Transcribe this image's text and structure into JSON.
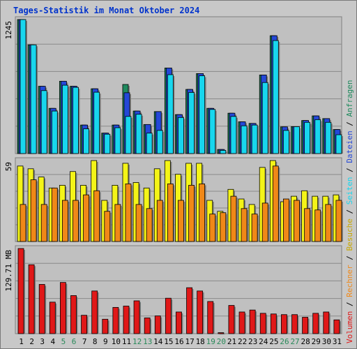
{
  "title": "Tages-Statistik im Monat Oktober 2024",
  "colors": {
    "anfragen": "#1f8a5e",
    "dateien": "#2448d8",
    "seiten": "#18d6ee",
    "besuche": "#f4f418",
    "rechner": "#f08818",
    "volumen": "#e01818",
    "weekend_label": "#2a8a5a",
    "weekday_label": "#000000"
  },
  "chart_data": [
    {
      "type": "bar",
      "panel": "top",
      "ylabel_value": "1245",
      "ylim": [
        0,
        1245
      ],
      "categories": [
        "1",
        "2",
        "3",
        "4",
        "5",
        "6",
        "7",
        "8",
        "9",
        "10",
        "11",
        "12",
        "13",
        "14",
        "15",
        "16",
        "17",
        "18",
        "19",
        "20",
        "21",
        "22",
        "23",
        "24",
        "25",
        "26",
        "27",
        "28",
        "29",
        "30",
        "31"
      ],
      "weekend_days": [
        "5",
        "6",
        "12",
        "13",
        "19",
        "20",
        "26",
        "27"
      ],
      "series": [
        {
          "name": "Anfragen",
          "values": [
            1245,
            1010,
            625,
            420,
            672,
            625,
            265,
            602,
            190,
            265,
            642,
            395,
            270,
            390,
            795,
            362,
            596,
            743,
            420,
            38,
            375,
            295,
            280,
            730,
            1095,
            248,
            250,
            307,
            350,
            325,
            223
          ]
        },
        {
          "name": "Dateien",
          "values": [
            1245,
            1010,
            625,
            420,
            672,
            625,
            265,
            602,
            190,
            265,
            565,
            395,
            270,
            390,
            795,
            362,
            596,
            743,
            420,
            38,
            375,
            295,
            280,
            730,
            1095,
            248,
            250,
            307,
            350,
            325,
            223
          ]
        },
        {
          "name": "Seiten",
          "values": [
            1245,
            1010,
            585,
            395,
            635,
            615,
            230,
            570,
            180,
            240,
            345,
            365,
            190,
            215,
            733,
            335,
            568,
            723,
            410,
            30,
            345,
            258,
            265,
            660,
            1050,
            215,
            250,
            290,
            315,
            290,
            175
          ]
        }
      ]
    },
    {
      "type": "bar",
      "panel": "middle",
      "ylabel_value": "59",
      "ylim": [
        0,
        59
      ],
      "categories": [
        "1",
        "2",
        "3",
        "4",
        "5",
        "6",
        "7",
        "8",
        "9",
        "10",
        "11",
        "12",
        "13",
        "14",
        "15",
        "16",
        "17",
        "18",
        "19",
        "20",
        "21",
        "22",
        "23",
        "24",
        "25",
        "26",
        "27",
        "28",
        "29",
        "30",
        "31"
      ],
      "series": [
        {
          "name": "Besuche",
          "values": [
            55,
            53,
            47,
            39,
            41,
            51,
            41,
            59,
            30,
            41,
            57,
            43,
            39,
            53,
            59,
            49,
            57,
            57,
            30,
            22,
            38,
            31,
            27,
            54,
            59,
            29,
            33,
            37,
            33,
            33,
            34
          ]
        },
        {
          "name": "Rechner",
          "values": [
            27,
            45,
            27,
            39,
            30,
            30,
            34,
            37,
            22,
            27,
            42,
            27,
            24,
            30,
            42,
            30,
            41,
            42,
            20,
            21,
            33,
            24,
            20,
            28,
            55,
            31,
            30,
            24,
            23,
            27,
            30
          ]
        }
      ]
    },
    {
      "type": "bar",
      "panel": "bottom",
      "ylabel_value": "129.71 MB",
      "ylim": [
        0,
        129.71
      ],
      "categories": [
        "1",
        "2",
        "3",
        "4",
        "5",
        "6",
        "7",
        "8",
        "9",
        "10",
        "11",
        "12",
        "13",
        "14",
        "15",
        "16",
        "17",
        "18",
        "19",
        "20",
        "21",
        "22",
        "23",
        "24",
        "25",
        "26",
        "27",
        "28",
        "29",
        "30",
        "31"
      ],
      "series": [
        {
          "name": "Volumen",
          "values": [
            129.71,
            105,
            75,
            48,
            78,
            58,
            28,
            65,
            22,
            40,
            42,
            50,
            24,
            27,
            54,
            33,
            70,
            65,
            49,
            1.5,
            43,
            33,
            36,
            31,
            30,
            29,
            29,
            25,
            31,
            33,
            21
          ]
        }
      ]
    }
  ],
  "legend": {
    "upper": [
      {
        "label": "Anfragen",
        "color": "#1f8a5e"
      },
      {
        "label": "Dateien",
        "color": "#2448d8"
      },
      {
        "label": "Seiten",
        "color": "#18d6ee"
      },
      {
        "label": "Besuche",
        "color": "#f4f418"
      },
      {
        "label": "Rechner",
        "color": "#f08818"
      },
      {
        "label": "Volumen",
        "color": "#e01818"
      }
    ],
    "separator": " / "
  }
}
